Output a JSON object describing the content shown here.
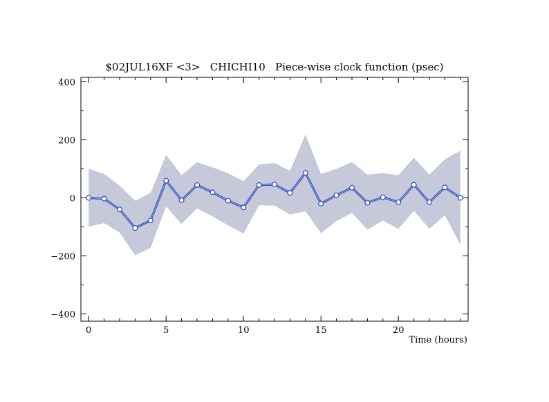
{
  "chart_data": {
    "type": "line",
    "title": "$02JUL16XF <3>   CHICHI10   Piece-wise clock function (psec)",
    "xlabel": "Time (hours)",
    "ylabel": "",
    "xlim": [
      -0.5,
      24.5
    ],
    "ylim": [
      -425,
      415
    ],
    "x_ticks": [
      0,
      5,
      10,
      15,
      20
    ],
    "x_tick_labels": [
      "0",
      "5",
      "10",
      "15",
      "20"
    ],
    "y_ticks": [
      -400,
      -200,
      0,
      200,
      400
    ],
    "y_tick_labels": [
      "−400",
      "−200",
      "0",
      "200",
      "400"
    ],
    "grid": false,
    "legend": "none",
    "x": [
      0,
      1,
      2,
      3,
      4,
      5,
      6,
      7,
      8,
      9,
      10,
      11,
      12,
      13,
      14,
      15,
      16,
      17,
      18,
      19,
      20,
      21,
      22,
      23,
      24
    ],
    "series": [
      {
        "values": [
          0,
          -3,
          -40,
          -104,
          -78,
          59,
          -8,
          44,
          19,
          -10,
          -33,
          44,
          46,
          17,
          86,
          -20,
          9,
          35,
          -17,
          2,
          -15,
          45,
          -15,
          36,
          0
        ],
        "upper": [
          100,
          82,
          42,
          -10,
          17,
          148,
          78,
          123,
          105,
          85,
          57,
          115,
          120,
          93,
          218,
          82,
          100,
          123,
          80,
          85,
          78,
          138,
          80,
          133,
          162
        ],
        "lower": [
          -100,
          -87,
          -120,
          -198,
          -172,
          -30,
          -90,
          -37,
          -64,
          -95,
          -123,
          -26,
          -27,
          -58,
          -46,
          -122,
          -80,
          -52,
          -110,
          -78,
          -107,
          -45,
          -107,
          -60,
          -162
        ]
      }
    ],
    "colors": {
      "band": "#c5c9da",
      "line": "#2a47b4",
      "marker_fill": "#ffffff",
      "marker_stroke": "#2a47b4"
    }
  }
}
